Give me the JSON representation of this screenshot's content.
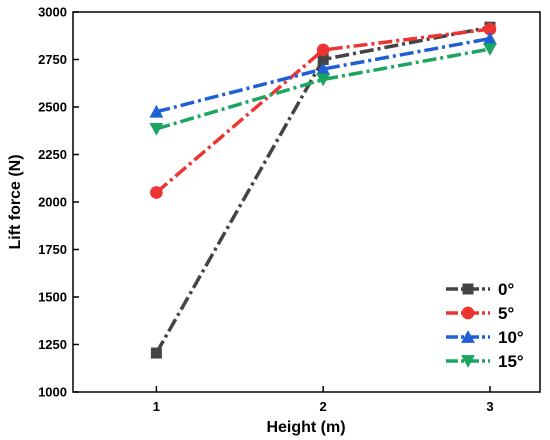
{
  "chart_data": {
    "type": "line",
    "title": "",
    "xlabel": "Height (m)",
    "ylabel": "Lift force (N)",
    "x": [
      1,
      2,
      3
    ],
    "x_ticks": [
      "1",
      "2",
      "3"
    ],
    "xlim": [
      0.5,
      3.3
    ],
    "ylim": [
      1000,
      3000
    ],
    "y_ticks": [
      "1000",
      "1250",
      "1500",
      "1750",
      "2000",
      "2250",
      "2500",
      "2750",
      "3000"
    ],
    "grid": false,
    "legend_position": "bottom-right",
    "series": [
      {
        "name": "0°",
        "values": [
          1205,
          2750,
          2920
        ],
        "color": "#444444",
        "marker": "square"
      },
      {
        "name": "5°",
        "values": [
          2050,
          2800,
          2910
        ],
        "color": "#ee3333",
        "marker": "circle"
      },
      {
        "name": "10°",
        "values": [
          2475,
          2700,
          2860
        ],
        "color": "#1f5fd6",
        "marker": "triangle-up"
      },
      {
        "name": "15°",
        "values": [
          2385,
          2645,
          2805
        ],
        "color": "#1aa560",
        "marker": "triangle-down"
      }
    ]
  }
}
